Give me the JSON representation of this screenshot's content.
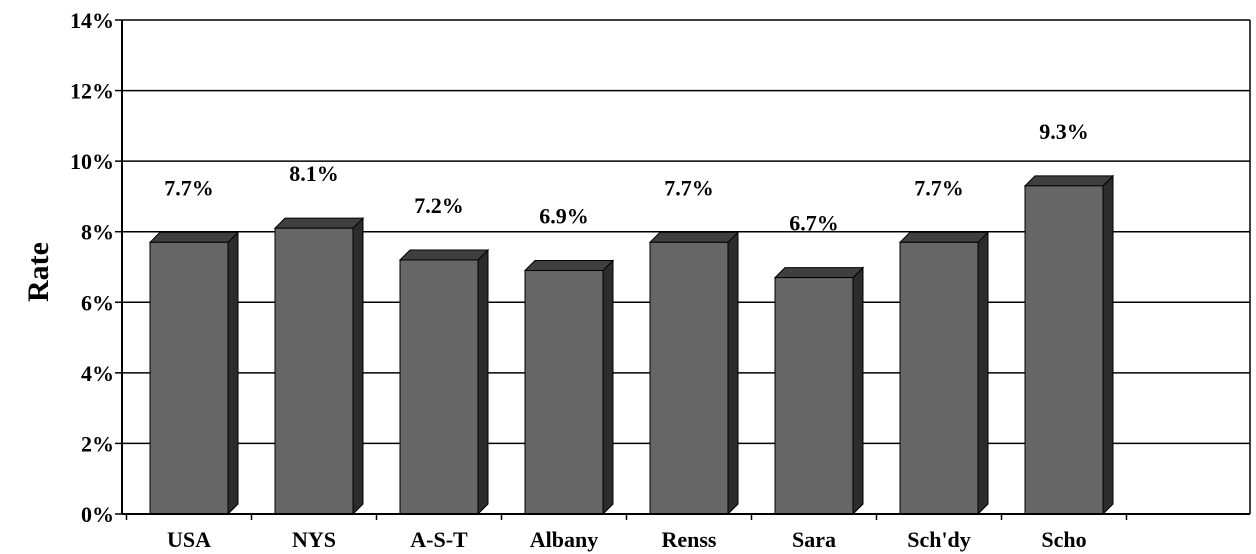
{
  "chart_data": {
    "type": "bar",
    "title": "",
    "xlabel": "",
    "ylabel": "Rate",
    "categories": [
      "USA",
      "NYS",
      "A-S-T",
      "Albany",
      "Renss",
      "Sara",
      "Sch'dy",
      "Scho"
    ],
    "values": [
      7.7,
      8.1,
      7.2,
      6.9,
      7.7,
      6.7,
      7.7,
      9.3
    ],
    "data_labels": [
      "7.7%",
      "8.1%",
      "7.2%",
      "6.9%",
      "7.7%",
      "6.7%",
      "7.7%",
      "9.3%"
    ],
    "ylim": [
      0,
      14
    ],
    "y_ticks": [
      0,
      2,
      4,
      6,
      8,
      10,
      12,
      14
    ],
    "y_tick_labels": [
      "0%",
      "2%",
      "4%",
      "6%",
      "8%",
      "10%",
      "12%",
      "14%"
    ],
    "grid": true,
    "legend": "none",
    "colors": {
      "bar_front": "#666666",
      "bar_top": "#3f3f3f",
      "bar_side": "#2c2c2c",
      "grid": "#000000"
    }
  }
}
